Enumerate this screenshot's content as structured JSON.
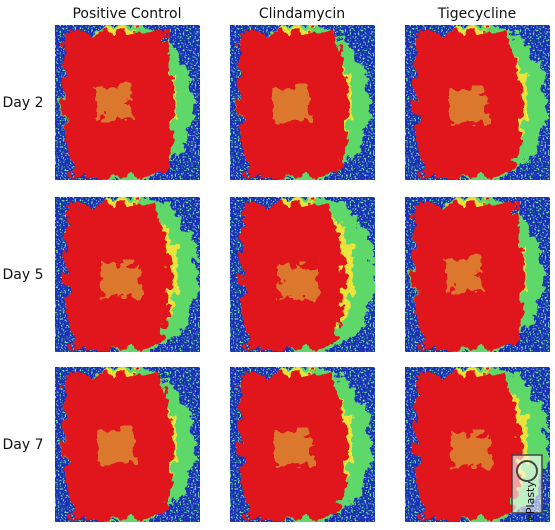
{
  "figure": {
    "columns": [
      "Positive Control",
      "Clindamycin",
      "Tigecycline"
    ],
    "rows": [
      "Day 2",
      "Day 5",
      "Day 7"
    ],
    "watermark": "ePlasty"
  }
}
